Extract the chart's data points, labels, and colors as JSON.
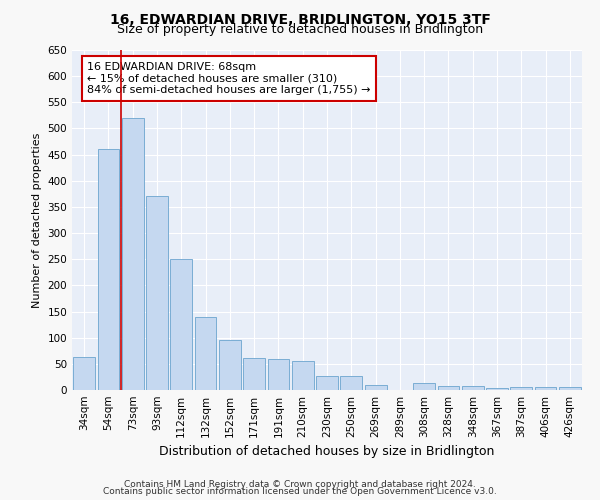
{
  "title1": "16, EDWARDIAN DRIVE, BRIDLINGTON, YO15 3TF",
  "title2": "Size of property relative to detached houses in Bridlington",
  "xlabel": "Distribution of detached houses by size in Bridlington",
  "ylabel": "Number of detached properties",
  "categories": [
    "34sqm",
    "54sqm",
    "73sqm",
    "93sqm",
    "112sqm",
    "132sqm",
    "152sqm",
    "171sqm",
    "191sqm",
    "210sqm",
    "230sqm",
    "250sqm",
    "269sqm",
    "289sqm",
    "308sqm",
    "328sqm",
    "348sqm",
    "367sqm",
    "387sqm",
    "406sqm",
    "426sqm"
  ],
  "values": [
    63,
    460,
    520,
    370,
    250,
    140,
    95,
    62,
    60,
    56,
    27,
    27,
    10,
    0,
    13,
    7,
    7,
    3,
    5,
    5,
    5
  ],
  "bar_color": "#c5d8f0",
  "bar_edge_color": "#7aadd4",
  "ylim": [
    0,
    650
  ],
  "yticks": [
    0,
    50,
    100,
    150,
    200,
    250,
    300,
    350,
    400,
    450,
    500,
    550,
    600,
    650
  ],
  "vline_color": "#cc0000",
  "vline_x": 1.5,
  "annotation_text": "16 EDWARDIAN DRIVE: 68sqm\n← 15% of detached houses are smaller (310)\n84% of semi-detached houses are larger (1,755) →",
  "annotation_box_facecolor": "#ffffff",
  "annotation_box_edgecolor": "#cc0000",
  "footer1": "Contains HM Land Registry data © Crown copyright and database right 2024.",
  "footer2": "Contains public sector information licensed under the Open Government Licence v3.0.",
  "fig_facecolor": "#f8f8f8",
  "plot_facecolor": "#e8eef8",
  "grid_color": "#ffffff",
  "title1_fontsize": 10,
  "title2_fontsize": 9,
  "xlabel_fontsize": 9,
  "ylabel_fontsize": 8,
  "tick_fontsize": 7.5,
  "ann_fontsize": 8,
  "footer_fontsize": 6.5
}
